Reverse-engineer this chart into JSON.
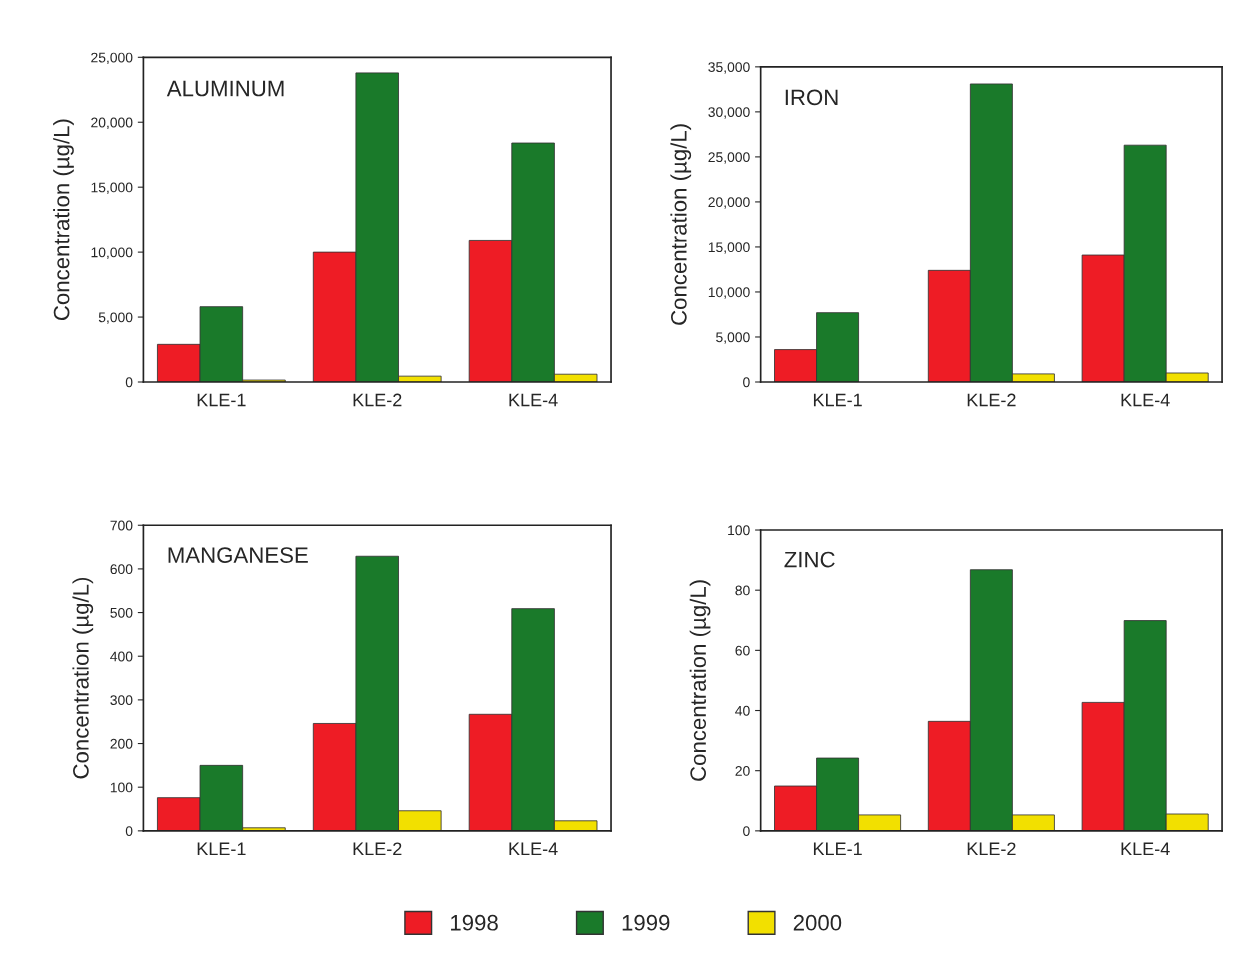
{
  "chart_data": [
    {
      "type": "bar",
      "title": "ALUMINUM",
      "ylabel": "Concentration (µg/L)",
      "categories": [
        "KLE-1",
        "KLE-2",
        "KLE-4"
      ],
      "legend": "bottom",
      "grid": false,
      "ylim": [
        0,
        25000
      ],
      "yticks": [
        0,
        {
          "value": 5000,
          "label": "5,000"
        },
        {
          "value": 10000,
          "label": "10,000"
        },
        {
          "value": 15000,
          "label": "15,000"
        },
        {
          "value": 20000,
          "label": "20,000"
        },
        {
          "value": 25000,
          "label": "25,000"
        }
      ],
      "series": [
        {
          "name": "1998",
          "color": "#ee1c25",
          "values": [
            2900,
            10000,
            10900
          ]
        },
        {
          "name": "1999",
          "color": "#1a7a2a",
          "values": [
            5800,
            23800,
            18400
          ]
        },
        {
          "name": "2000",
          "color": "#f2e000",
          "values": [
            150,
            450,
            600
          ]
        }
      ]
    },
    {
      "type": "bar",
      "title": "IRON",
      "ylabel": "Concentration (µg/L)",
      "categories": [
        "KLE-1",
        "KLE-2",
        "KLE-4"
      ],
      "legend": "bottom",
      "grid": false,
      "ylim": [
        0,
        35000
      ],
      "yticks": [
        0,
        {
          "value": 5000,
          "label": "5,000"
        },
        {
          "value": 10000,
          "label": "10,000"
        },
        {
          "value": 15000,
          "label": "15,000"
        },
        {
          "value": 20000,
          "label": "20,000"
        },
        {
          "value": 25000,
          "label": "25,000"
        },
        {
          "value": 30000,
          "label": "30,000"
        },
        {
          "value": 35000,
          "label": "35,000"
        }
      ],
      "series": [
        {
          "name": "1998",
          "color": "#ee1c25",
          "values": [
            3600,
            12400,
            14100
          ]
        },
        {
          "name": "1999",
          "color": "#1a7a2a",
          "values": [
            7700,
            33100,
            26300
          ]
        },
        {
          "name": "2000",
          "color": "#f2e000",
          "values": [
            null,
            900,
            1000
          ]
        }
      ]
    },
    {
      "type": "bar",
      "title": "MANGANESE",
      "ylabel": "Concentration (µg/L)",
      "categories": [
        "KLE-1",
        "KLE-2",
        "KLE-4"
      ],
      "legend": "bottom",
      "grid": false,
      "ylim": [
        0,
        700
      ],
      "yticks": [
        0,
        100,
        200,
        300,
        400,
        500,
        600,
        700
      ],
      "series": [
        {
          "name": "1998",
          "color": "#ee1c25",
          "values": [
            76,
            246,
            267
          ]
        },
        {
          "name": "1999",
          "color": "#1a7a2a",
          "values": [
            150,
            629,
            509
          ]
        },
        {
          "name": "2000",
          "color": "#f2e000",
          "values": [
            7,
            46,
            23
          ]
        }
      ]
    },
    {
      "type": "bar",
      "title": "ZINC",
      "ylabel": "Concentration (µg/L)",
      "categories": [
        "KLE-1",
        "KLE-2",
        "KLE-4"
      ],
      "legend": "bottom",
      "grid": false,
      "ylim": [
        0,
        100
      ],
      "yticks": [
        0,
        20,
        40,
        60,
        80,
        100
      ],
      "series": [
        {
          "name": "1998",
          "color": "#ee1c25",
          "values": [
            14.9,
            36.4,
            42.7
          ]
        },
        {
          "name": "1999",
          "color": "#1a7a2a",
          "values": [
            24.2,
            86.8,
            69.9
          ]
        },
        {
          "name": "2000",
          "color": "#f2e000",
          "values": [
            5.3,
            5.3,
            5.6
          ]
        }
      ]
    }
  ]
}
